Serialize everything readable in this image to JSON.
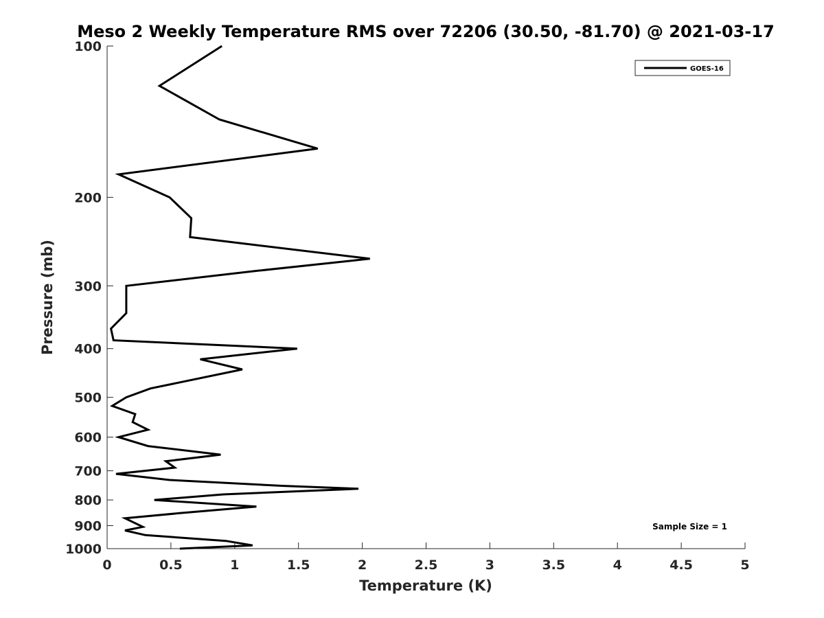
{
  "chart_data": {
    "type": "line",
    "title": "Meso 2 Weekly Temperature RMS over 72206 (30.50, -81.70) @ 2021-03-17",
    "xlabel": "Temperature (K)",
    "ylabel": "Pressure (mb)",
    "xlim": [
      0,
      5
    ],
    "ylim": [
      100,
      1000
    ],
    "y_scale": "log",
    "y_reversed": true,
    "x_ticks": [
      0,
      0.5,
      1,
      1.5,
      2,
      2.5,
      3,
      3.5,
      4,
      4.5,
      5
    ],
    "x_tick_labels": [
      "0",
      "0.5",
      "1",
      "1.5",
      "2",
      "2.5",
      "3",
      "3.5",
      "4",
      "4.5",
      "5"
    ],
    "y_ticks": [
      100,
      200,
      300,
      400,
      500,
      600,
      700,
      800,
      900,
      1000
    ],
    "y_tick_labels": [
      "100",
      "200",
      "300",
      "400",
      "500",
      "600",
      "700",
      "800",
      "900",
      "1000"
    ],
    "grid": false,
    "legend_position": "top-right",
    "series": [
      {
        "name": "GOES-16",
        "color": "#000000",
        "points": [
          [
            0.9,
            100
          ],
          [
            0.41,
            120
          ],
          [
            0.88,
            140
          ],
          [
            1.65,
            160
          ],
          [
            0.09,
            180
          ],
          [
            0.49,
            200
          ],
          [
            0.66,
            220
          ],
          [
            0.65,
            240
          ],
          [
            2.06,
            265
          ],
          [
            1.18,
            280
          ],
          [
            0.15,
            300
          ],
          [
            0.15,
            340
          ],
          [
            0.03,
            365
          ],
          [
            0.05,
            385
          ],
          [
            1.49,
            400
          ],
          [
            0.73,
            420
          ],
          [
            1.06,
            440
          ],
          [
            0.34,
            480
          ],
          [
            0.15,
            500
          ],
          [
            0.04,
            520
          ],
          [
            0.22,
            540
          ],
          [
            0.2,
            560
          ],
          [
            0.32,
            580
          ],
          [
            0.09,
            600
          ],
          [
            0.32,
            625
          ],
          [
            0.89,
            650
          ],
          [
            0.46,
            670
          ],
          [
            0.53,
            690
          ],
          [
            0.07,
            710
          ],
          [
            0.49,
            730
          ],
          [
            1.37,
            750
          ],
          [
            1.97,
            760
          ],
          [
            0.91,
            780
          ],
          [
            0.37,
            800
          ],
          [
            1.17,
            825
          ],
          [
            0.57,
            850
          ],
          [
            0.14,
            870
          ],
          [
            0.28,
            905
          ],
          [
            0.14,
            920
          ],
          [
            0.3,
            940
          ],
          [
            0.93,
            965
          ],
          [
            1.14,
            985
          ],
          [
            0.57,
            1000
          ]
        ]
      }
    ],
    "annotations": [
      {
        "text": "Sample Size = 1",
        "position": "bottom-right"
      }
    ]
  }
}
